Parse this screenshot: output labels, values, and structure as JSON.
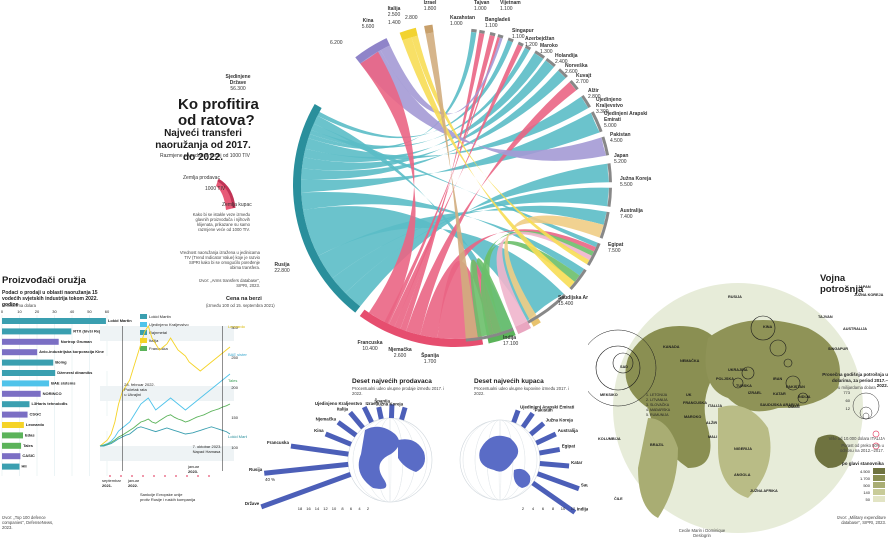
{
  "header": {
    "title": "Ko profitira od ratova?",
    "subtitle": "Najveći transferi naoružanja od 2017. do 2022.",
    "tiv_note": "Razmjene u vrednosti većoj od 1000 TIV",
    "legend_supplier": "Zemlja prodavac",
    "legend_buyer": "Zemlja kupac",
    "legend_tiv": "1000 TIV",
    "legend_explain": "Kako bi se istakle veze između glavnih proizvođača i njihovih klijenata, prikazane su samo razmjene veće od 1000 TIV.",
    "tiv_definition": "Vrednost naoružanja izražena u jedinicama TIV (Trend Indicator Value) koje je razvio SIPRI kako bi se omogućilo poređenje obima transfera.",
    "source": "Izvor: „Arms transfers database\", SIPRI, 2023."
  },
  "chord": {
    "exporters": [
      {
        "name": "Sjedinjene Države",
        "value": "56.300"
      },
      {
        "name": "Rusija",
        "value": "22.800"
      },
      {
        "name": "Francuska",
        "value": "10.400"
      },
      {
        "name": "Njemačka",
        "value": "2.600"
      },
      {
        "name": "Španija",
        "value": "1.700"
      },
      {
        "name": "Kina",
        "value": "5.600"
      },
      {
        "name": "Italija",
        "value": "2.500"
      },
      {
        "name": "Izrael",
        "value": "1.800"
      }
    ],
    "importers": [
      {
        "name": "Tajvan",
        "value": "1.000"
      },
      {
        "name": "Vijetnam",
        "value": "1.100"
      },
      {
        "name": "Kazahstan",
        "value": "1.000"
      },
      {
        "name": "Bangladeš",
        "value": "1.100"
      },
      {
        "name": "Singapur",
        "value": "1.100"
      },
      {
        "name": "Azerbejdžan",
        "value": "1.200"
      },
      {
        "name": "Maroko",
        "value": "1.300"
      },
      {
        "name": "Holandija",
        "value": "2.400"
      },
      {
        "name": "Norveška",
        "value": "2.600"
      },
      {
        "name": "Kuvajt",
        "value": "2.700"
      },
      {
        "name": "Alžir",
        "value": "2.800"
      },
      {
        "name": "Ujedinjeno Kraljevstvo",
        "value": "3.300"
      },
      {
        "name": "Ujedinjeni Arapski Emirati",
        "value": "5.000"
      },
      {
        "name": "Pakistan",
        "value": "4.500"
      },
      {
        "name": "Japan",
        "value": "5.200"
      },
      {
        "name": "Južna Koreja",
        "value": "5.500"
      },
      {
        "name": "Australija",
        "value": "7.400"
      },
      {
        "name": "Egipat",
        "value": "7.500"
      },
      {
        "name": "Katar",
        "value": "8.000"
      },
      {
        "name": "Saudijska Arabija",
        "value": "15.400"
      },
      {
        "name": "Indija",
        "value": "17.100"
      }
    ],
    "extra_labels": [
      "6.200",
      "1.400",
      "2.800"
    ]
  },
  "producers": {
    "title": "Proizvođači oružja",
    "subtitle": "Podaci o prodaji u oblasti naoružanja 15 vodećih svjetskih industrija tokom 2022. godine",
    "unit": "u milionima dolara",
    "axis": [
      "0",
      "10",
      "20",
      "30",
      "40",
      "50",
      "60"
    ],
    "source": "Izvor: „Top 100 defence companies\", DefenseNews, 2023.",
    "companies": [
      {
        "name": "Lokid Martin",
        "value": 59.4,
        "color": "#3a9fb0"
      },
      {
        "name": "RTX (bivši Rejteon tehnolođis)",
        "value": 39.6,
        "color": "#3a9fb0"
      },
      {
        "name": "Nortrop Gruman",
        "value": 32.4,
        "color": "#7b6fc4"
      },
      {
        "name": "Avio-industrijska korporacija Kine",
        "value": 20.1,
        "color": "#7b6fc4"
      },
      {
        "name": "Boing",
        "value": 29.3,
        "color": "#3a9fb0"
      },
      {
        "name": "Dženeral dinamiks",
        "value": 30.4,
        "color": "#3a9fb0"
      },
      {
        "name": "BAE sistems",
        "value": 26.9,
        "color": "#4fc3ea"
      },
      {
        "name": "NORINCO",
        "value": 22.1,
        "color": "#7b6fc4"
      },
      {
        "name": "L3Haris tehnolođis",
        "value": 15.7,
        "color": "#3a9fb0"
      },
      {
        "name": "CSGC",
        "value": 14.6,
        "color": "#7b6fc4"
      },
      {
        "name": "Leonardo",
        "value": 12.5,
        "color": "#f5d327"
      },
      {
        "name": "Edas",
        "value": 12.0,
        "color": "#5bb35a"
      },
      {
        "name": "Tales",
        "value": 10.9,
        "color": "#5bb35a"
      },
      {
        "name": "CASIC",
        "value": 10.5,
        "color": "#7b6fc4"
      },
      {
        "name": "Hii",
        "value": 10.0,
        "color": "#3a9fb0"
      }
    ]
  },
  "stocks": {
    "title": "Cena na berzi",
    "subtitle": "(između 100 od 15. septembra 2021)",
    "legend": [
      {
        "name": "Lokid Martin",
        "color": "#3a9fb0"
      },
      {
        "name": "Ujedinjeno Kraljevstvo",
        "color": "#4fc3ea"
      },
      {
        "name": "Rajnmetal",
        "color": "#3a9fb0"
      },
      {
        "name": "Italija",
        "color": "#f5d327"
      },
      {
        "name": "Francuska",
        "color": "#5bb35a"
      }
    ],
    "annotation1": "24. februar 2022. Početak rata u Ukrajini",
    "annotation2": "7. oktobar 2023. Napad Hamasa",
    "x_labels": [
      "septembar 2021.",
      "januar 2022.",
      "januar 2023."
    ],
    "y_labels": [
      "300",
      "250",
      "200",
      "150",
      "100"
    ],
    "right_labels": [
      "Leonardo",
      "BAE sistemi",
      "Tales",
      "Lokid Martin"
    ],
    "sanction_note": "Sankcije Evropske unije protiv Rusije i ruskih kompanija"
  },
  "exporters_globe": {
    "title": "Deset najvećih prodavaca",
    "subtitle": "Procentualni udeo ukupne prodaje između 2017. i 2022.",
    "axis": [
      "18",
      "16",
      "14",
      "12",
      "10",
      "8",
      "6",
      "4",
      "2"
    ],
    "countries": [
      {
        "name": "Sjedinjene Države",
        "value": 40
      },
      {
        "name": "Rusija",
        "value": 16
      },
      {
        "name": "Francuska",
        "value": 11
      },
      {
        "name": "Kina",
        "value": 5.2
      },
      {
        "name": "Njemačka",
        "value": 4.2
      },
      {
        "name": "Italija",
        "value": 3.8
      },
      {
        "name": "Ujedinjeno Kraljevstvo",
        "value": 3.2
      },
      {
        "name": "Izrael",
        "value": 2.3
      },
      {
        "name": "Španija",
        "value": 2.6
      },
      {
        "name": "Južna Koreja",
        "value": 2.4
      }
    ],
    "us_label": "40 %"
  },
  "importers_globe": {
    "title": "Deset najvećih kupaca",
    "subtitle": "Procentualni udeo ukupne kupovine između 2017. i 2022.",
    "axis": [
      "2",
      "4",
      "6",
      "8",
      "10",
      "12"
    ],
    "countries": [
      {
        "name": "Ujedinjeni Arapski Emirati",
        "value": 2.8
      },
      {
        "name": "Pakistan",
        "value": 3.7
      },
      {
        "name": "Južna Koreja",
        "value": 3.7
      },
      {
        "name": "Australija",
        "value": 4.7
      },
      {
        "name": "Egipat",
        "value": 4.5
      },
      {
        "name": "Katar",
        "value": 6.4
      },
      {
        "name": "Saudijska Arabija",
        "value": 9.6
      },
      {
        "name": "Indija",
        "value": 11.2
      }
    ]
  },
  "spending_map": {
    "title": "Vojna potrošnja",
    "legend_title": "Prosečna godišnja potrošnja u dolarima, za period 2017.–2022.",
    "unit": "u milijardama dolara",
    "bubble_values": [
      "773",
      "60",
      "12"
    ],
    "italy_note": "Više od 10.000 dolara ITALIJA",
    "growth_note": "Porast od preko 50% u odnosu na 2012.–2017.",
    "gdp_label": "po glavi stanovnika",
    "gdp_values": [
      "4.500",
      "1.700",
      "500",
      "140",
      "50"
    ],
    "source": "Izvor: „Military expenditure database\", SIPRI, 2023.",
    "credit": "Cecile Marin i Dominique Deslogrin",
    "countries": [
      "JAPAN",
      "KANADA",
      "SAD",
      "MEKSIKO",
      "KOLUMBIJA",
      "BRAZIL",
      "ČILE",
      "KINA",
      "INDIJA",
      "RUSIJA",
      "AUSTRALIJA",
      "NEMAČKA",
      "FRANCUSKA",
      "UK",
      "ITALIJA",
      "POLJSKA",
      "ALŽIR",
      "MAROKO",
      "TURSKA",
      "IZRAEL",
      "SAUDIJSKA ARABIJA",
      "KATAR",
      "IRAN",
      "PAKISTAN",
      "JUŽNA KOREJA",
      "TAJVAN",
      "SINGAPUR",
      "MALI",
      "NIGERIJA",
      "ANGOLA",
      "JUŽNA AFRIKA",
      "UKRAJINA",
      "OMAN"
    ],
    "baltic_list": [
      "1. LETONIJA",
      "2. LITVANIJA",
      "3. SLOVAČKA",
      "4. MAĐARSKA",
      "5. RUMUNIJA"
    ]
  }
}
